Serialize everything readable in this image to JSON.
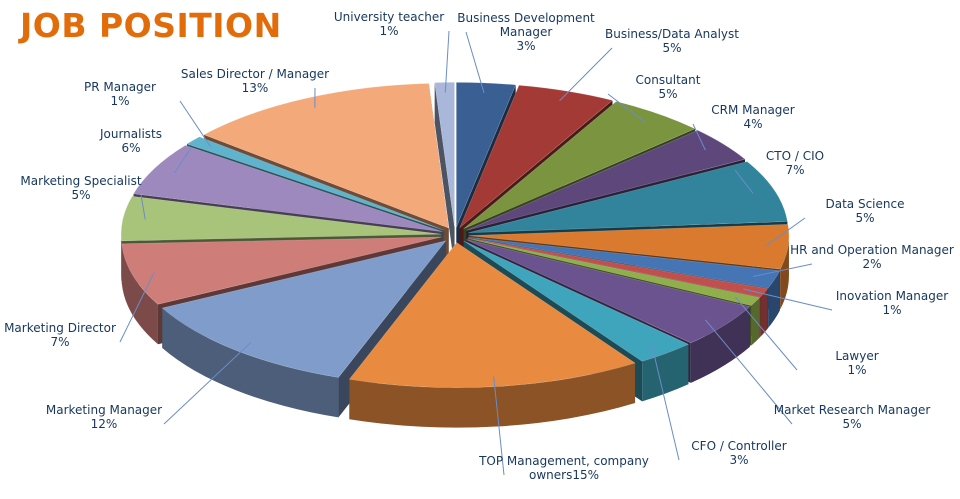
{
  "chart_data": {
    "type": "pie",
    "title": "JOB POSITION",
    "title_color": "#e36c0a",
    "label_color": "#17375e",
    "leader_color": "#6b8cc9",
    "slices": [
      {
        "name": "Business Development Manager",
        "value": 3,
        "label_line1": "Business Development",
        "label_line2": "Manager",
        "value_label": "3%",
        "color": "#3a5f93"
      },
      {
        "name": "Business/Data Analyst",
        "value": 5,
        "label_line1": "Business/Data Analyst",
        "label_line2": "",
        "value_label": "5%",
        "color": "#a33a36"
      },
      {
        "name": "Consultant",
        "value": 5,
        "label_line1": "Consultant",
        "label_line2": "",
        "value_label": "5%",
        "color": "#7b9440"
      },
      {
        "name": "CRM Manager",
        "value": 4,
        "label_line1": "CRM Manager",
        "label_line2": "",
        "value_label": "4%",
        "color": "#5e477b"
      },
      {
        "name": "CTO / CIO",
        "value": 7,
        "label_line1": "CTO / CIO",
        "label_line2": "",
        "value_label": "7%",
        "color": "#31849b"
      },
      {
        "name": "Data Science",
        "value": 5,
        "label_line1": "Data Science",
        "label_line2": "",
        "value_label": "5%",
        "color": "#d97a2f"
      },
      {
        "name": "HR and Operation Manager",
        "value": 2,
        "label_line1": "HR and Operation Manager",
        "label_line2": "",
        "value_label": "2%",
        "color": "#4575b4"
      },
      {
        "name": "Inovation Manager",
        "value": 1,
        "label_line1": "Inovation Manager",
        "label_line2": "",
        "value_label": "1%",
        "color": "#c0504d"
      },
      {
        "name": "Lawyer",
        "value": 1,
        "label_line1": "Lawyer",
        "label_line2": "",
        "value_label": "1%",
        "color": "#8fae4c"
      },
      {
        "name": "Market Research Manager",
        "value": 5,
        "label_line1": "Market Research Manager",
        "label_line2": "",
        "value_label": "5%",
        "color": "#6a538f"
      },
      {
        "name": "CFO / Controller",
        "value": 3,
        "label_line1": "CFO / Controller",
        "label_line2": "",
        "value_label": "3%",
        "color": "#3fa5bd"
      },
      {
        "name": "TOP Management, company owners",
        "value": 15,
        "label_line1": "TOP Management, company",
        "label_line2": "owners15%",
        "value_label": "",
        "color": "#e88a3f"
      },
      {
        "name": "Marketing Manager",
        "value": 12,
        "label_line1": "Marketing Manager",
        "label_line2": "",
        "value_label": "12%",
        "color": "#7f9ccb"
      },
      {
        "name": "Marketing Director",
        "value": 7,
        "label_line1": "Marketing Director",
        "label_line2": "",
        "value_label": "7%",
        "color": "#cf7d79"
      },
      {
        "name": "Marketing Specialist",
        "value": 5,
        "label_line1": "Marketing Specialist",
        "label_line2": "",
        "value_label": "5%",
        "color": "#a8c47a"
      },
      {
        "name": "Journalists",
        "value": 6,
        "label_line1": "Journalists",
        "label_line2": "",
        "value_label": "6%",
        "color": "#9d89bd"
      },
      {
        "name": "PR Manager",
        "value": 1,
        "label_line1": "PR Manager",
        "label_line2": "",
        "value_label": "1%",
        "color": "#5fb3cc"
      },
      {
        "name": "Sales Director / Manager",
        "value": 13,
        "label_line1": "Sales Director / Manager",
        "label_line2": "",
        "value_label": "13%",
        "color": "#f4a97a"
      },
      {
        "name": "University teacher",
        "value": 1,
        "label_line1": "University teacher",
        "label_line2": "",
        "value_label": "1%",
        "color": "#a9b8da"
      }
    ]
  }
}
